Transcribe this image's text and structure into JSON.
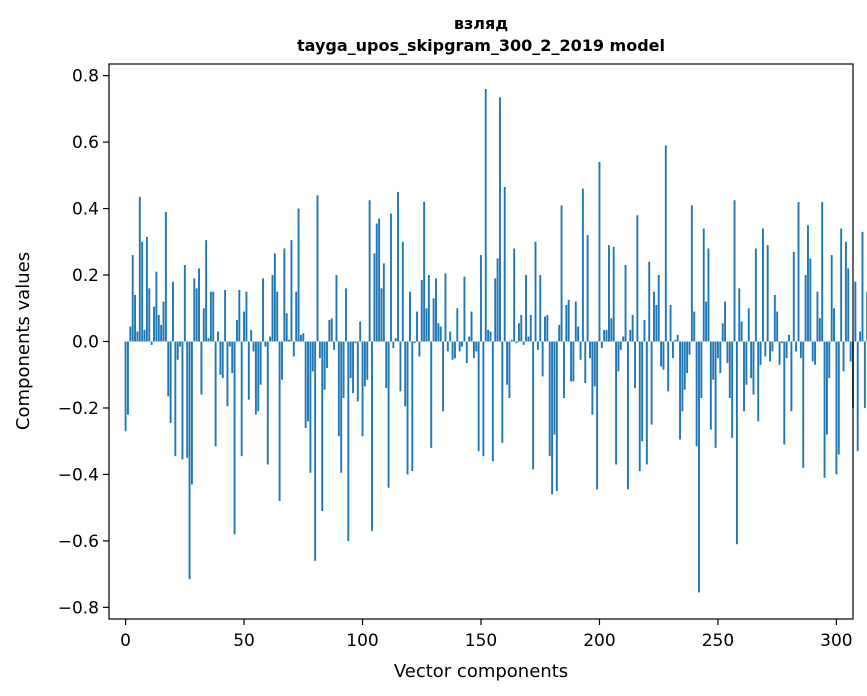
{
  "chart_data": {
    "type": "bar",
    "title_line1": "взляд",
    "title_line2": "tayga_upos_skipgram_300_2_2019 model",
    "xlabel": "Vector components",
    "ylabel": "Components values",
    "xlim": [
      -7,
      307
    ],
    "ylim": [
      -0.835,
      0.835
    ],
    "xticks": [
      0,
      50,
      100,
      150,
      200,
      250,
      300
    ],
    "xtick_labels": [
      "0",
      "50",
      "100",
      "150",
      "200",
      "250",
      "300"
    ],
    "yticks": [
      -0.8,
      -0.6,
      -0.4,
      -0.2,
      0.0,
      0.2,
      0.4,
      0.6,
      0.8
    ],
    "ytick_labels": [
      "−0.8",
      "−0.6",
      "−0.4",
      "−0.2",
      "0.0",
      "0.2",
      "0.4",
      "0.6",
      "0.8"
    ],
    "bar_color": "#1f77b4",
    "values": [
      -0.27,
      -0.22,
      0.045,
      0.26,
      0.14,
      0.03,
      0.435,
      0.3,
      0.035,
      0.315,
      0.16,
      -0.01,
      0.105,
      0.21,
      0.08,
      0.05,
      0.12,
      0.39,
      -0.165,
      -0.245,
      0.18,
      -0.345,
      -0.055,
      -0.015,
      -0.355,
      0.23,
      -0.35,
      -0.715,
      -0.43,
      0.19,
      0.16,
      0.22,
      -0.16,
      0.1,
      0.305,
      0.01,
      0.15,
      0.15,
      -0.315,
      0.03,
      -0.1,
      -0.11,
      0.155,
      -0.195,
      -0.015,
      -0.095,
      -0.58,
      0.065,
      0.155,
      -0.345,
      0.09,
      0.15,
      -0.175,
      0.035,
      -0.03,
      -0.22,
      -0.21,
      -0.13,
      0.19,
      -0.015,
      -0.37,
      0.015,
      0.2,
      0.265,
      0.15,
      -0.48,
      -0.115,
      0.28,
      0.085,
      0.005,
      0.305,
      -0.045,
      0.15,
      0.4,
      0.02,
      0.025,
      -0.26,
      -0.24,
      -0.395,
      -0.09,
      -0.66,
      0.44,
      -0.05,
      -0.51,
      -0.145,
      -0.08,
      0.065,
      0.07,
      -0.025,
      0.2,
      -0.285,
      -0.395,
      -0.17,
      0.16,
      -0.6,
      -0.11,
      -0.155,
      -0.005,
      -0.18,
      0.06,
      -0.285,
      -0.135,
      -0.115,
      0.425,
      -0.57,
      0.265,
      0.355,
      0.37,
      0.16,
      0.235,
      -0.14,
      -0.44,
      0.385,
      -0.02,
      0.01,
      0.45,
      -0.15,
      0.3,
      -0.195,
      -0.4,
      0.15,
      -0.39,
      -0.005,
      0.09,
      -0.045,
      0.185,
      0.42,
      0.1,
      0.2,
      -0.32,
      0.13,
      0.19,
      0.055,
      0.045,
      -0.21,
      0.205,
      -0.03,
      0.03,
      -0.055,
      -0.05,
      0.1,
      -0.03,
      -0.015,
      0.195,
      -0.065,
      0.015,
      0.09,
      -0.05,
      -0.03,
      -0.33,
      0.26,
      -0.345,
      0.76,
      0.035,
      0.03,
      -0.36,
      0.19,
      0.25,
      0.735,
      -0.305,
      0.465,
      -0.13,
      -0.17,
      0.005,
      0.28,
      -0.005,
      0.055,
      0.08,
      -0.01,
      0.2,
      0.015,
      0.08,
      -0.385,
      0.3,
      -0.025,
      0.2,
      -0.105,
      0.075,
      0.08,
      -0.345,
      -0.46,
      -0.28,
      -0.45,
      0.05,
      0.41,
      -0.17,
      0.11,
      0.125,
      -0.12,
      -0.12,
      0.12,
      0.045,
      -0.055,
      0.46,
      -0.125,
      0.32,
      -0.05,
      -0.22,
      -0.135,
      -0.445,
      0.54,
      -0.02,
      0.035,
      0.035,
      0.29,
      0.07,
      0.285,
      -0.37,
      -0.09,
      -0.025,
      0.015,
      0.23,
      -0.445,
      0.035,
      0.08,
      -0.14,
      0.38,
      -0.39,
      -0.3,
      0.065,
      -0.37,
      0.24,
      -0.25,
      0.15,
      0.11,
      0.2,
      -0.075,
      -0.085,
      0.59,
      -0.15,
      0.11,
      -0.05,
      0.005,
      0.02,
      -0.295,
      -0.21,
      -0.145,
      -0.095,
      -0.04,
      0.41,
      0.09,
      -0.315,
      -0.755,
      -0.17,
      0.34,
      0.12,
      0.28,
      -0.265,
      -0.115,
      -0.32,
      -0.05,
      -0.095,
      0.055,
      0.12,
      -0.065,
      -0.17,
      -0.29,
      0.425,
      -0.61,
      0.16,
      0.06,
      -0.21,
      -0.13,
      0.1,
      -0.11,
      -0.16,
      0.28,
      -0.24,
      -0.07,
      0.34,
      -0.045,
      0.29,
      -0.06,
      -0.03,
      0.14,
      0.09,
      -0.07,
      -0.005,
      -0.31,
      -0.05,
      0.02,
      -0.21,
      0.27,
      -0.03,
      0.42,
      -0.05,
      -0.38,
      0.2,
      0.35,
      0.25,
      -0.06,
      -0.07,
      0.15,
      0.07,
      0.42,
      -0.41,
      -0.28,
      -0.11,
      0.26,
      0.1,
      -0.4,
      -0.34,
      0.34,
      -0.09,
      0.3,
      0.22,
      -0.06,
      -0.2,
      0.18,
      -0.33,
      0.03,
      0.33,
      -0.2,
      0.15
    ]
  }
}
